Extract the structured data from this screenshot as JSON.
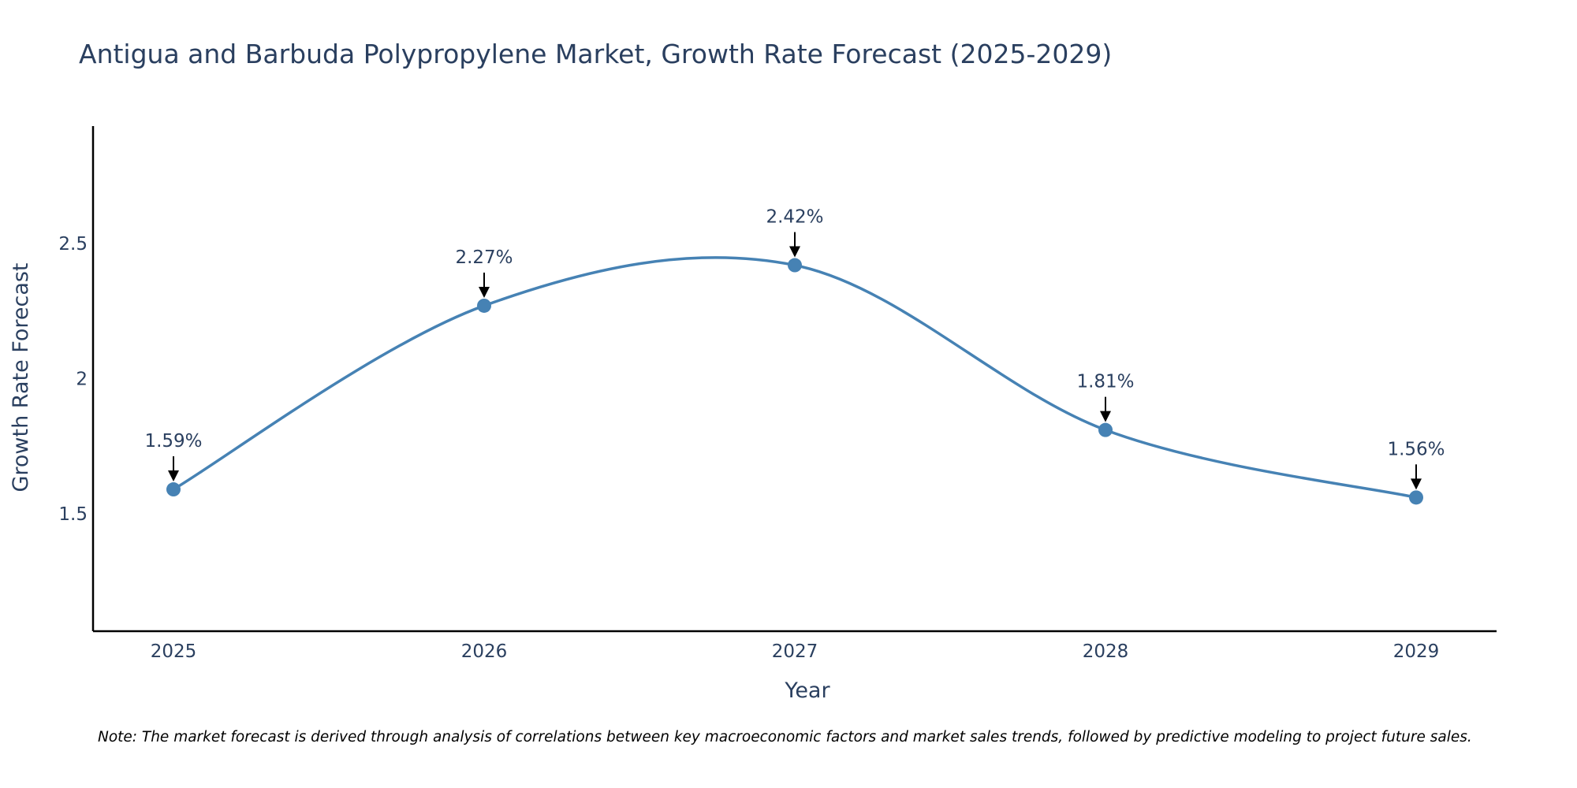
{
  "chart_data": {
    "type": "line",
    "title": "Antigua and Barbuda Polypropylene Market, Growth Rate Forecast (2025-2029)",
    "xlabel": "Year",
    "ylabel": "Growth Rate Forecast",
    "categories": [
      "2025",
      "2026",
      "2027",
      "2028",
      "2029"
    ],
    "series": [
      {
        "name": "Growth Rate Forecast",
        "values": [
          1.59,
          2.27,
          2.42,
          1.81,
          1.56
        ],
        "labels": [
          "1.59%",
          "2.27%",
          "2.42%",
          "1.81%",
          "1.56%"
        ]
      }
    ],
    "ylim": [
      1.065,
      2.935
    ],
    "yticks": [
      1.5,
      2,
      2.5
    ],
    "ytick_labels": [
      "1.5",
      "2",
      "2.5"
    ],
    "line_shape": "spline",
    "grid": false,
    "annotation_arrows": true
  },
  "note": "Note: The market forecast is derived through analysis of correlations between key macroeconomic factors and market sales trends, followed by predictive modeling to project future sales.",
  "colors": {
    "line": "#4682b4",
    "marker": "#4682b4",
    "axis": "#000000",
    "text": "#2a3f5f",
    "arrow": "#000000"
  }
}
